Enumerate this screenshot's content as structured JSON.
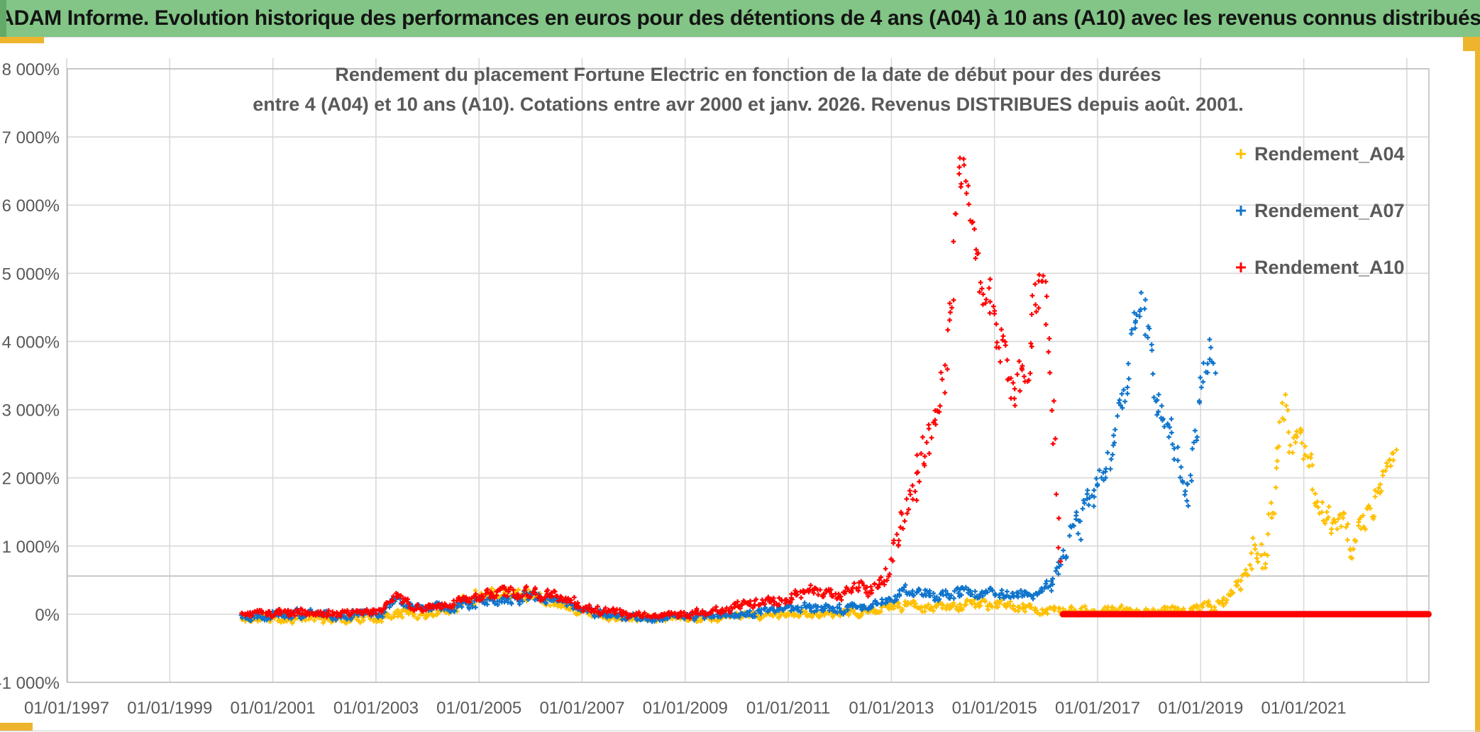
{
  "header": {
    "title": "ADAM Informe. Evolution historique des performances en euros pour des détentions de 4 ans (A04) à 10 ans (A10) avec les revenus connus distribués",
    "bg_color": "#82c586",
    "accent_color": "#eeb42d"
  },
  "chart_data": {
    "type": "scatter",
    "title_line1": "Rendement du placement Fortune Electric  en fonction de la date de début pour des durées",
    "title_line2": "entre 4 (A04) et 10 ans (A10). Cotations entre avr 2000 et janv. 2026. Revenus DISTRIBUES depuis août. 2001.",
    "x_axis": {
      "tick_labels": [
        "01/01/1997",
        "01/01/1999",
        "01/01/2001",
        "01/01/2003",
        "01/01/2005",
        "01/01/2007",
        "01/01/2009",
        "01/01/2011",
        "01/01/2013",
        "01/01/2015",
        "01/01/2017",
        "01/01/2019",
        "01/01/2021"
      ],
      "tick_years": [
        1997,
        1999,
        2001,
        2003,
        2005,
        2007,
        2009,
        2011,
        2013,
        2015,
        2017,
        2019,
        2021
      ],
      "grid_years": [
        1997,
        1999,
        2001,
        2003,
        2005,
        2007,
        2009,
        2011,
        2013,
        2015,
        2017,
        2019,
        2021,
        2023
      ],
      "range_years": [
        1997,
        2023.43
      ]
    },
    "y_axis": {
      "tick_labels": [
        "8 000%",
        "7 000%",
        "6 000%",
        "5 000%",
        "4 000%",
        "3 000%",
        "2 000%",
        "1 000%",
        "0%",
        "-1 000%"
      ],
      "tick_values": [
        8000,
        7000,
        6000,
        5000,
        4000,
        3000,
        2000,
        1000,
        0,
        -1000
      ],
      "range_pct": [
        -1000,
        8000
      ],
      "grid": true
    },
    "extra_gridline_pct": 560,
    "grid_color": "#d9d9d9",
    "border_color": "#bfbfbf",
    "legend_position": "top-right",
    "legend": [
      {
        "label": "Rendement_A04",
        "color": "#FFC000"
      },
      {
        "label": "Rendement_A07",
        "color": "#0F74CC"
      },
      {
        "label": "Rendement_A10",
        "color": "#FF0000"
      }
    ],
    "series": [
      {
        "name": "Rendement_A04",
        "color": "#FFC000",
        "marker": "plus",
        "seed": 11,
        "points_per_year": 45,
        "anchors": [
          [
            2000.4,
            -80,
            70
          ],
          [
            2001.2,
            -60,
            60
          ],
          [
            2002.2,
            -70,
            55
          ],
          [
            2003.1,
            -40,
            55
          ],
          [
            2003.4,
            20,
            70
          ],
          [
            2004.0,
            -10,
            55
          ],
          [
            2004.6,
            170,
            90
          ],
          [
            2005.0,
            300,
            100
          ],
          [
            2005.4,
            380,
            110
          ],
          [
            2005.9,
            260,
            90
          ],
          [
            2006.4,
            230,
            80
          ],
          [
            2006.9,
            60,
            60
          ],
          [
            2007.6,
            -50,
            45
          ],
          [
            2008.6,
            -70,
            45
          ],
          [
            2009.6,
            -55,
            45
          ],
          [
            2010.6,
            -20,
            45
          ],
          [
            2011.6,
            5,
            45
          ],
          [
            2012.6,
            40,
            55
          ],
          [
            2013.2,
            120,
            70
          ],
          [
            2013.9,
            90,
            55
          ],
          [
            2014.6,
            150,
            70
          ],
          [
            2015.1,
            130,
            65
          ],
          [
            2015.9,
            60,
            50
          ],
          [
            2016.6,
            45,
            50
          ],
          [
            2017.3,
            65,
            55
          ],
          [
            2018.1,
            45,
            50
          ],
          [
            2018.9,
            70,
            55
          ],
          [
            2019.4,
            160,
            80
          ],
          [
            2019.8,
            420,
            130
          ],
          [
            2020.05,
            1050,
            260
          ],
          [
            2020.25,
            800,
            200
          ],
          [
            2020.45,
            1850,
            280
          ],
          [
            2020.62,
            3050,
            320
          ],
          [
            2020.78,
            2550,
            350
          ],
          [
            2020.95,
            2350,
            260
          ],
          [
            2021.08,
            2500,
            220
          ],
          [
            2021.25,
            1550,
            280
          ],
          [
            2021.5,
            1300,
            210
          ],
          [
            2021.72,
            1380,
            190
          ],
          [
            2021.95,
            1020,
            160
          ],
          [
            2022.15,
            1380,
            200
          ],
          [
            2022.45,
            1850,
            210
          ],
          [
            2022.68,
            2280,
            170
          ],
          [
            2022.78,
            2350,
            130
          ]
        ]
      },
      {
        "name": "Rendement_A07",
        "color": "#0F74CC",
        "marker": "plus",
        "seed": 22,
        "points_per_year": 45,
        "anchors": [
          [
            2000.4,
            -30,
            65
          ],
          [
            2001.2,
            15,
            60
          ],
          [
            2002.2,
            -25,
            55
          ],
          [
            2003.1,
            40,
            65
          ],
          [
            2003.4,
            230,
            85
          ],
          [
            2003.75,
            70,
            55
          ],
          [
            2004.6,
            130,
            65
          ],
          [
            2005.1,
            220,
            75
          ],
          [
            2005.6,
            255,
            85
          ],
          [
            2006.4,
            215,
            75
          ],
          [
            2006.95,
            75,
            55
          ],
          [
            2007.6,
            -40,
            45
          ],
          [
            2008.6,
            -55,
            45
          ],
          [
            2009.6,
            -35,
            45
          ],
          [
            2010.4,
            25,
            45
          ],
          [
            2011.1,
            65,
            55
          ],
          [
            2011.55,
            125,
            65
          ],
          [
            2012.1,
            70,
            55
          ],
          [
            2012.75,
            155,
            65
          ],
          [
            2013.25,
            320,
            85
          ],
          [
            2013.75,
            280,
            75
          ],
          [
            2014.35,
            330,
            75
          ],
          [
            2014.85,
            300,
            65
          ],
          [
            2015.35,
            280,
            60
          ],
          [
            2015.85,
            285,
            65
          ],
          [
            2016.1,
            420,
            90
          ],
          [
            2016.38,
            950,
            160
          ],
          [
            2016.58,
            1500,
            210
          ],
          [
            2016.72,
            1320,
            260
          ],
          [
            2016.98,
            1900,
            210
          ],
          [
            2017.18,
            2100,
            260
          ],
          [
            2017.38,
            2700,
            260
          ],
          [
            2017.58,
            3400,
            310
          ],
          [
            2017.78,
            4750,
            380
          ],
          [
            2017.92,
            4300,
            360
          ],
          [
            2018.08,
            3500,
            310
          ],
          [
            2018.25,
            3000,
            260
          ],
          [
            2018.42,
            2800,
            260
          ],
          [
            2018.58,
            2250,
            260
          ],
          [
            2018.72,
            1500,
            330
          ],
          [
            2018.88,
            2600,
            320
          ],
          [
            2019.02,
            3450,
            310
          ],
          [
            2019.18,
            3900,
            270
          ],
          [
            2019.27,
            3700,
            250
          ]
        ]
      },
      {
        "name": "Rendement_A10",
        "color": "#FF0000",
        "marker": "plus",
        "seed": 33,
        "points_per_year": 45,
        "zero_segment_years": [
          2016.33,
          2023.42
        ],
        "anchors": [
          [
            2000.4,
            0,
            55
          ],
          [
            2001.2,
            25,
            55
          ],
          [
            2002.2,
            0,
            50
          ],
          [
            2003.1,
            60,
            65
          ],
          [
            2003.4,
            220,
            85
          ],
          [
            2003.75,
            85,
            55
          ],
          [
            2004.6,
            160,
            65
          ],
          [
            2005.3,
            280,
            85
          ],
          [
            2005.8,
            300,
            85
          ],
          [
            2006.5,
            280,
            75
          ],
          [
            2007.1,
            90,
            55
          ],
          [
            2007.9,
            -20,
            45
          ],
          [
            2008.9,
            -25,
            45
          ],
          [
            2009.7,
            65,
            55
          ],
          [
            2010.3,
            155,
            65
          ],
          [
            2010.9,
            225,
            75
          ],
          [
            2011.45,
            330,
            85
          ],
          [
            2011.95,
            235,
            70
          ],
          [
            2012.35,
            420,
            95
          ],
          [
            2012.65,
            360,
            85
          ],
          [
            2012.95,
            700,
            160
          ],
          [
            2013.15,
            1150,
            220
          ],
          [
            2013.4,
            1700,
            260
          ],
          [
            2013.62,
            2300,
            320
          ],
          [
            2013.82,
            2650,
            360
          ],
          [
            2014.02,
            3650,
            420
          ],
          [
            2014.18,
            5050,
            520
          ],
          [
            2014.32,
            6350,
            420
          ],
          [
            2014.47,
            6450,
            380
          ],
          [
            2014.62,
            5600,
            420
          ],
          [
            2014.82,
            4700,
            370
          ],
          [
            2015.02,
            4300,
            320
          ],
          [
            2015.22,
            3600,
            380
          ],
          [
            2015.42,
            3300,
            420
          ],
          [
            2015.62,
            3800,
            370
          ],
          [
            2015.77,
            4400,
            320
          ],
          [
            2015.9,
            4800,
            380
          ],
          [
            2016.02,
            4500,
            420
          ],
          [
            2016.12,
            3200,
            420
          ],
          [
            2016.22,
            1700,
            420
          ],
          [
            2016.28,
            700,
            300
          ]
        ]
      }
    ]
  }
}
